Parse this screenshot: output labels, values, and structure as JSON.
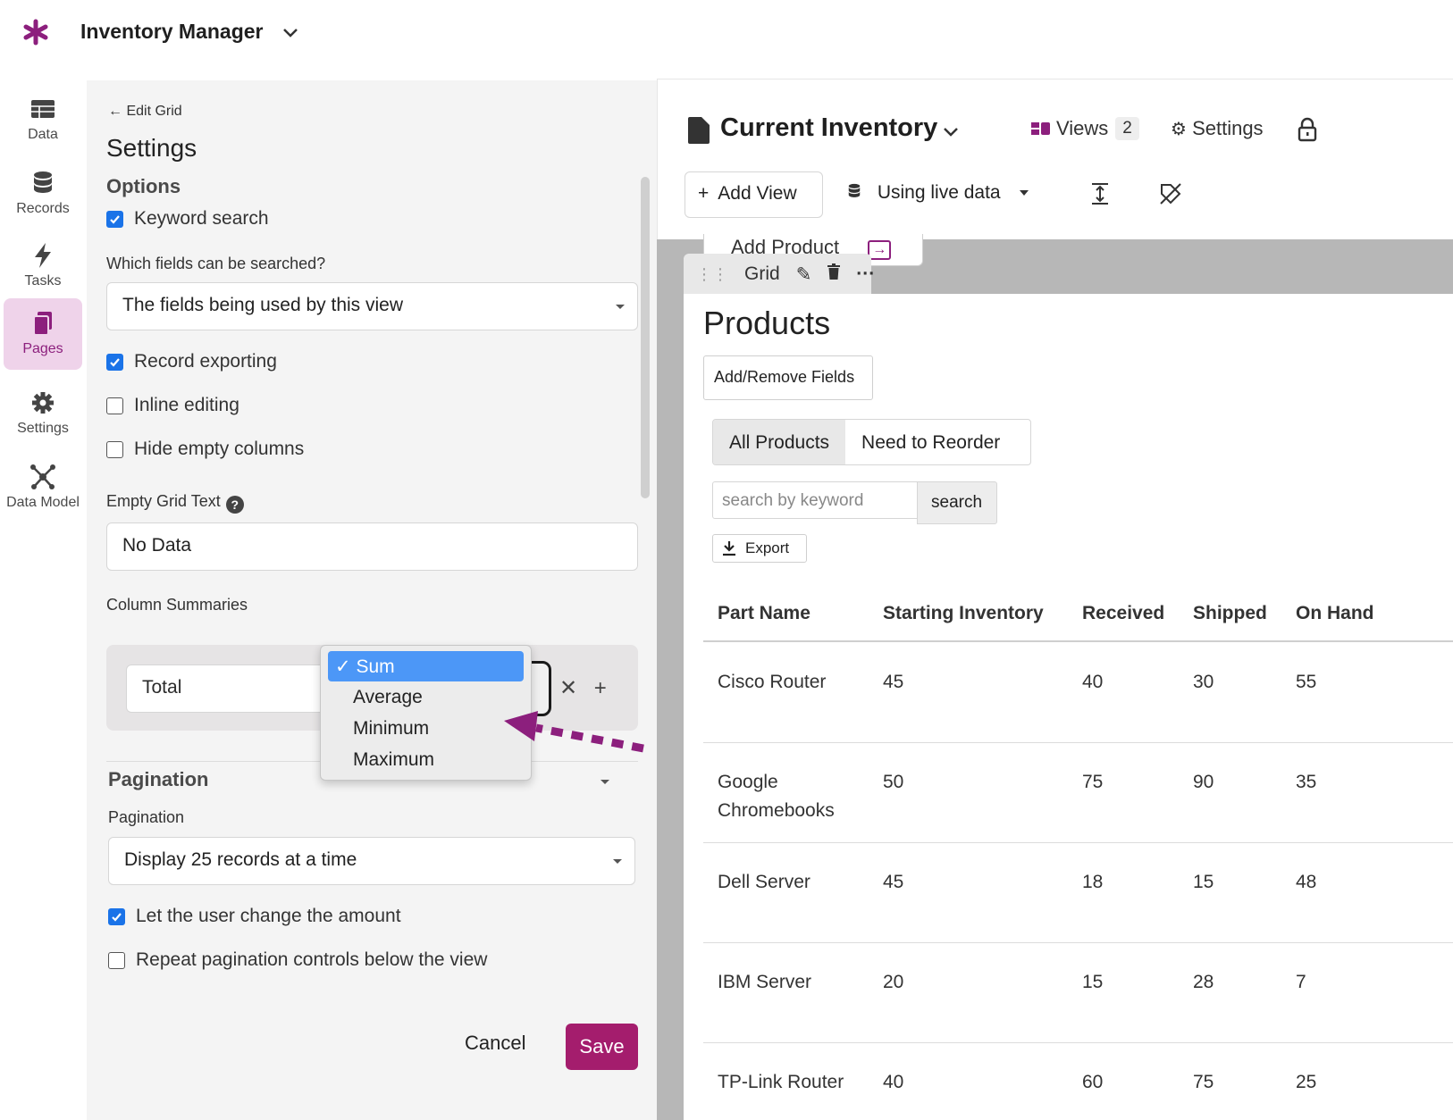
{
  "app": {
    "title": "Inventory Manager"
  },
  "nav": [
    {
      "label": "Data",
      "icon": "table-icon"
    },
    {
      "label": "Records",
      "icon": "database-icon"
    },
    {
      "label": "Tasks",
      "icon": "lightning-icon"
    },
    {
      "label": "Pages",
      "icon": "pages-icon",
      "active": true
    },
    {
      "label": "Settings",
      "icon": "gear-icon"
    },
    {
      "label": "Data Model",
      "icon": "network-icon"
    }
  ],
  "panel": {
    "back_label": "Edit Grid",
    "title": "Settings",
    "options_title": "Options",
    "keyword_search": {
      "label": "Keyword search",
      "checked": true
    },
    "searched_fields_label": "Which fields can be searched?",
    "searched_fields_value": "The fields being used by this view",
    "record_exporting": {
      "label": "Record exporting",
      "checked": true
    },
    "inline_editing": {
      "label": "Inline editing",
      "checked": false
    },
    "hide_empty": {
      "label": "Hide empty columns",
      "checked": false
    },
    "empty_grid_label": "Empty Grid Text",
    "empty_grid_value": "No Data",
    "summaries_label": "Column Summaries",
    "summary_name": "Total",
    "summary_options": [
      "Sum",
      "Average",
      "Minimum",
      "Maximum"
    ],
    "summary_selected": "Sum",
    "pagination_title": "Pagination",
    "pagination_label": "Pagination",
    "pagination_value": "Display 25 records at a time",
    "let_user_change": {
      "label": "Let the user change the amount",
      "checked": true
    },
    "repeat_controls": {
      "label": "Repeat pagination controls below the view",
      "checked": false
    },
    "cancel_label": "Cancel",
    "save_label": "Save"
  },
  "page": {
    "title": "Current Inventory",
    "views_label": "Views",
    "views_count": "2",
    "settings_label": "Settings",
    "add_view_label": "Add View",
    "live_data_label": "Using live data",
    "behind_button": "Add Product",
    "grid_tab_label": "Grid"
  },
  "grid": {
    "title": "Products",
    "add_remove_label": "Add/Remove Fields",
    "tabs": [
      "All Products",
      "Need to Reorder"
    ],
    "search_placeholder": "search by keyword",
    "search_button": "search",
    "export_label": "Export",
    "columns": [
      "Part Name",
      "Starting Inventory",
      "Received",
      "Shipped",
      "On Hand"
    ],
    "rows": [
      [
        "Cisco Router",
        "45",
        "40",
        "30",
        "55"
      ],
      [
        "Google Chromebooks",
        "50",
        "75",
        "90",
        "35"
      ],
      [
        "Dell Server",
        "45",
        "18",
        "15",
        "48"
      ],
      [
        "IBM Server",
        "20",
        "15",
        "28",
        "7"
      ],
      [
        "TP-Link Router",
        "40",
        "60",
        "75",
        "25"
      ]
    ]
  },
  "colors": {
    "brand": "#8c1f7d",
    "save": "#a41d6d",
    "selected_option": "#4c97f7",
    "checkbox": "#1a73e8"
  }
}
